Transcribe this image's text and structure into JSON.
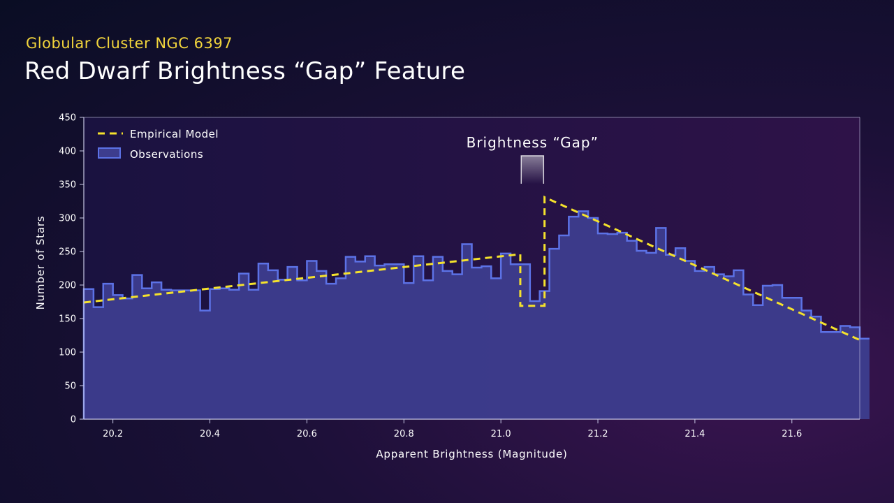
{
  "header": {
    "subtitle": "Globular Cluster NGC 6397",
    "title": "Red Dwarf Brightness “Gap” Feature"
  },
  "colors": {
    "observations_fill": "#3d3d8e",
    "observations_line": "#5c72e6",
    "model_line": "#f5e22c",
    "axis": "#c8c8e6"
  },
  "chart_data": {
    "type": "area",
    "title": "",
    "xlabel": "Apparent Brightness (Magnitude)",
    "ylabel": "Number of Stars",
    "xlim": [
      20.14,
      21.74
    ],
    "ylim": [
      0,
      450
    ],
    "grid": false,
    "legend_placement": "top-left",
    "x_ticks": [
      "20.2",
      "20.4",
      "20.6",
      "20.8",
      "21.0",
      "21.2",
      "21.4",
      "21.6"
    ],
    "y_ticks": [
      "0",
      "50",
      "100",
      "150",
      "200",
      "250",
      "300",
      "350",
      "400",
      "450"
    ],
    "series": [
      {
        "name": "Observations",
        "style": "step histogram",
        "bin_start": 20.14,
        "bin_width": 0.02,
        "values": [
          194,
          167,
          202,
          185,
          180,
          215,
          195,
          204,
          193,
          192,
          192,
          192,
          162,
          194,
          195,
          193,
          217,
          193,
          232,
          222,
          208,
          227,
          207,
          236,
          221,
          202,
          210,
          242,
          235,
          243,
          229,
          231,
          231,
          203,
          243,
          207,
          242,
          221,
          216,
          261,
          226,
          228,
          210,
          247,
          231,
          231,
          176,
          191,
          254,
          274,
          302,
          310,
          300,
          277,
          276,
          278,
          266,
          251,
          248,
          285,
          245,
          255,
          236,
          221,
          227,
          216,
          213,
          222,
          186,
          170,
          199,
          200,
          181,
          181,
          162,
          153,
          130,
          130,
          139,
          137,
          120
        ]
      },
      {
        "name": "Empirical Model",
        "style": "dashed line",
        "x": [
          20.14,
          21.04,
          21.04,
          21.09,
          21.09,
          21.74
        ],
        "y": [
          174,
          246,
          169,
          169,
          331,
          118
        ]
      }
    ],
    "annotations": [
      {
        "text": "Brightness “Gap”",
        "x_start": 21.04,
        "x_end": 21.09
      }
    ]
  }
}
